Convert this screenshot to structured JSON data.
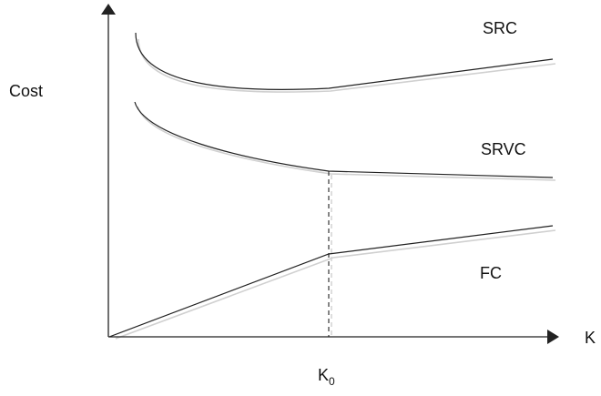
{
  "axes": {
    "y_label": "Cost",
    "x_label": "K",
    "marker": {
      "base": "K",
      "subscript": "0"
    }
  },
  "curves": {
    "src": {
      "label": "SRC"
    },
    "srvc": {
      "label": "SRVC"
    },
    "fc": {
      "label": "FC"
    }
  },
  "colors": {
    "line": "#222222",
    "shadow": "#d0d0d0",
    "background": "#ffffff"
  }
}
